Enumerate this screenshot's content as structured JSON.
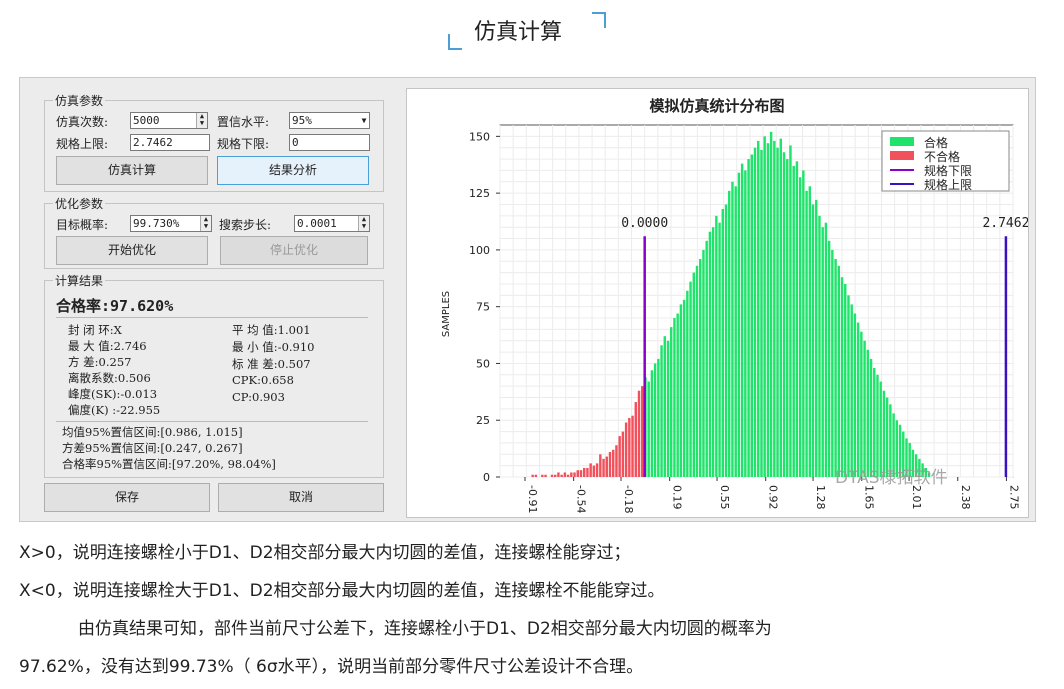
{
  "header": {
    "title": "仿真计算"
  },
  "panel": {
    "sim_group": {
      "legend": "仿真参数",
      "count_label": "仿真次数:",
      "count_value": "5000",
      "conf_label": "置信水平:",
      "conf_value": "95%",
      "upper_label": "规格上限:",
      "upper_value": "2.7462",
      "lower_label": "规格下限:",
      "lower_value": "0",
      "calc_button": "仿真计算",
      "analyze_button": "结果分析"
    },
    "opt_group": {
      "legend": "优化参数",
      "target_label": "目标概率:",
      "target_value": "99.730%",
      "step_label": "搜索步长:",
      "step_value": "0.0001",
      "start_button": "开始优化",
      "stop_button": "停止优化"
    },
    "result_group": {
      "legend": "计算结果",
      "pass_rate": "合格率:97.620%",
      "left_stats": [
        "封 闭 环:X",
        "最 大 值:2.746",
        "方    差:0.257",
        "离散系数:0.506",
        "峰度(SK):-0.013",
        "偏度(K) :-22.955"
      ],
      "right_stats": [
        "平 均 值:1.001",
        "最 小 值:-0.910",
        "标 准 差:0.507",
        "CPK:0.658",
        "CP:0.903"
      ],
      "intervals": [
        "均值95%置信区间:[0.986, 1.015]",
        "方差95%置信区间:[0.247, 0.267]",
        "合格率95%置信区间:[97.20%, 98.04%]"
      ]
    },
    "save_button": "保存",
    "cancel_button": "取消"
  },
  "footer": {
    "line1": "X>0，说明连接螺栓小于D1、D2相交部分最大内切圆的差值，连接螺栓能穿过；",
    "line2": "X<0，说明连接螺栓大于D1、D2相交部分最大内切圆的差值，连接螺栓不能能穿过。",
    "line3": "由仿真结果可知，部件当前尺寸公差下，连接螺栓小于D1、D2相交部分最大内切圆的概率为",
    "line4": "97.62%，没有达到99.73%（ 6σ水平），说明当前部分零件尺寸公差设计不合理。"
  },
  "watermark": "DTAS棣拓软件",
  "chart_data": {
    "type": "bar",
    "title": "模拟仿真统计分布图",
    "ylabel": "SAMPLES",
    "xlabel": "",
    "ylim": [
      0,
      155
    ],
    "yticks": [
      0,
      25,
      50,
      75,
      100,
      125,
      150
    ],
    "x_tick_labels": [
      "-0.91",
      "-0.54",
      "-0.18",
      "0.19",
      "0.55",
      "0.92",
      "1.28",
      "1.65",
      "2.01",
      "2.38",
      "2.75"
    ],
    "xlim": [
      -1.1,
      2.8
    ],
    "spec_lower": {
      "value": 0,
      "label": "0.0000"
    },
    "spec_upper": {
      "value": 2.7462,
      "label": "2.7462"
    },
    "legend": [
      "合格",
      "不合格",
      "规格下限",
      "规格上限"
    ],
    "legend_position": "top-right",
    "grid": true,
    "colors": {
      "pass": "#1fe36a",
      "fail": "#f2515b",
      "lower": "#8a00c9",
      "upper": "#3b10c2"
    },
    "bins": {
      "start": -0.91,
      "width": 0.0245,
      "values": [
        0,
        0,
        1,
        1,
        0,
        1,
        1,
        0,
        1,
        1,
        2,
        1,
        2,
        1,
        2,
        2,
        3,
        3,
        4,
        4,
        6,
        5,
        6,
        10,
        8,
        9,
        11,
        12,
        14,
        18,
        20,
        24,
        26,
        27,
        33,
        38,
        40,
        44,
        42,
        47,
        50,
        52,
        58,
        62,
        60,
        66,
        70,
        72,
        76,
        78,
        82,
        86,
        90,
        93,
        96,
        100,
        104,
        108,
        110,
        115,
        112,
        118,
        120,
        126,
        130,
        128,
        134,
        138,
        135,
        140,
        142,
        145,
        148,
        144,
        150,
        147,
        152,
        148,
        145,
        149,
        143,
        140,
        146,
        137,
        139,
        132,
        135,
        126,
        128,
        120,
        122,
        115,
        110,
        112,
        104,
        100,
        96,
        93,
        88,
        85,
        80,
        76,
        72,
        68,
        64,
        60,
        56,
        52,
        48,
        45,
        42,
        38,
        35,
        32,
        28,
        25,
        23,
        20,
        17,
        15,
        12,
        10,
        8,
        6,
        4,
        2
      ]
    }
  }
}
